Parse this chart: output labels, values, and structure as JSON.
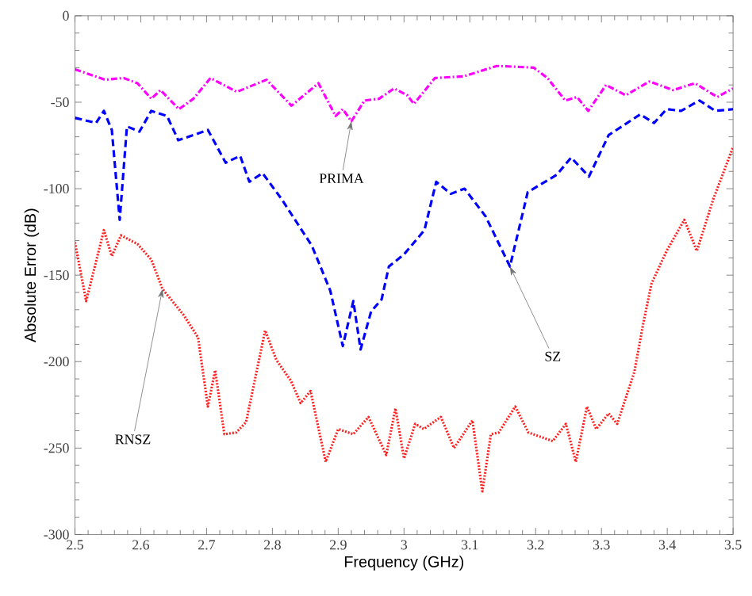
{
  "chart_data": {
    "type": "line",
    "xlabel": "Frequency (GHz)",
    "ylabel": "Absolute Error (dB)",
    "xlim": [
      2.5,
      3.5
    ],
    "ylim": [
      -300,
      0
    ],
    "xticks": [
      2.5,
      2.6,
      2.7,
      2.8,
      2.9,
      3,
      3.1,
      3.2,
      3.3,
      3.4,
      3.5
    ],
    "yticks": [
      -300,
      -250,
      -200,
      -150,
      -100,
      -50,
      0
    ],
    "series": [
      {
        "color": "#ff00ff",
        "line_style": "dashdot",
        "x": [
          2.5,
          2.546,
          2.574,
          2.595,
          2.616,
          2.63,
          2.658,
          2.68,
          2.706,
          2.746,
          2.791,
          2.829,
          2.87,
          2.896,
          2.907,
          2.92,
          2.94,
          2.962,
          2.985,
          3.005,
          3.015,
          3.047,
          3.091,
          3.141,
          3.197,
          3.218,
          3.245,
          3.263,
          3.28,
          3.307,
          3.337,
          3.373,
          3.409,
          3.442,
          3.476,
          3.5
        ],
        "values": [
          -31,
          -37,
          -36,
          -39,
          -48,
          -43,
          -54,
          -48,
          -36,
          -44,
          -37,
          -52,
          -39,
          -58,
          -54,
          -61,
          -49,
          -48,
          -42,
          -46,
          -51,
          -36,
          -35,
          -29,
          -30,
          -36,
          -49,
          -47,
          -55,
          -40,
          -46,
          -38,
          -43,
          -39,
          -47,
          -42
        ]
      },
      {
        "color": "#0000ff",
        "line_style": "dashed",
        "x": [
          2.5,
          2.532,
          2.544,
          2.556,
          2.568,
          2.579,
          2.598,
          2.616,
          2.64,
          2.657,
          2.68,
          2.702,
          2.729,
          2.751,
          2.765,
          2.785,
          2.814,
          2.86,
          2.888,
          2.907,
          2.923,
          2.934,
          2.95,
          2.966,
          2.977,
          3.0,
          3.031,
          3.049,
          3.071,
          3.092,
          3.124,
          3.161,
          3.188,
          3.232,
          3.254,
          3.281,
          3.311,
          3.359,
          3.38,
          3.399,
          3.421,
          3.449,
          3.473,
          3.5
        ],
        "values": [
          -59,
          -62,
          -55,
          -66,
          -118,
          -64,
          -67,
          -55,
          -58,
          -72,
          -69,
          -66,
          -85,
          -81,
          -96,
          -91,
          -106,
          -133,
          -159,
          -191,
          -165,
          -193,
          -171,
          -164,
          -145,
          -138,
          -124,
          -96,
          -103,
          -100,
          -116,
          -145,
          -102,
          -92,
          -82,
          -93,
          -69,
          -57,
          -62,
          -54,
          -55,
          -49,
          -55,
          -54
        ]
      },
      {
        "color": "#ff2020",
        "line_style": "dotted",
        "x": [
          2.5,
          2.517,
          2.544,
          2.556,
          2.57,
          2.595,
          2.616,
          2.633,
          2.665,
          2.687,
          2.702,
          2.713,
          2.727,
          2.745,
          2.76,
          2.789,
          2.806,
          2.828,
          2.843,
          2.858,
          2.881,
          2.9,
          2.923,
          2.946,
          2.973,
          2.987,
          3.0,
          3.017,
          3.03,
          3.056,
          3.076,
          3.104,
          3.119,
          3.132,
          3.144,
          3.169,
          3.189,
          3.226,
          3.246,
          3.261,
          3.278,
          3.292,
          3.311,
          3.324,
          3.35,
          3.363,
          3.376,
          3.399,
          3.426,
          3.445,
          3.47,
          3.5
        ],
        "values": [
          -131,
          -165,
          -124,
          -139,
          -127,
          -132,
          -141,
          -158,
          -173,
          -186,
          -226,
          -205,
          -242,
          -241,
          -235,
          -182,
          -199,
          -211,
          -224,
          -217,
          -258,
          -239,
          -242,
          -232,
          -254,
          -227,
          -256,
          -236,
          -239,
          -232,
          -250,
          -234,
          -275,
          -242,
          -241,
          -226,
          -241,
          -246,
          -236,
          -258,
          -226,
          -239,
          -230,
          -236,
          -206,
          -179,
          -155,
          -136,
          -118,
          -136,
          -106,
          -76
        ]
      }
    ],
    "annotations": [
      {
        "text": "PRIMA",
        "x": 2.92,
        "y": -61
      },
      {
        "text": "SZ",
        "x": 3.161,
        "y": -145
      },
      {
        "text": "RNSZ",
        "x": 2.633,
        "y": -158
      }
    ]
  }
}
